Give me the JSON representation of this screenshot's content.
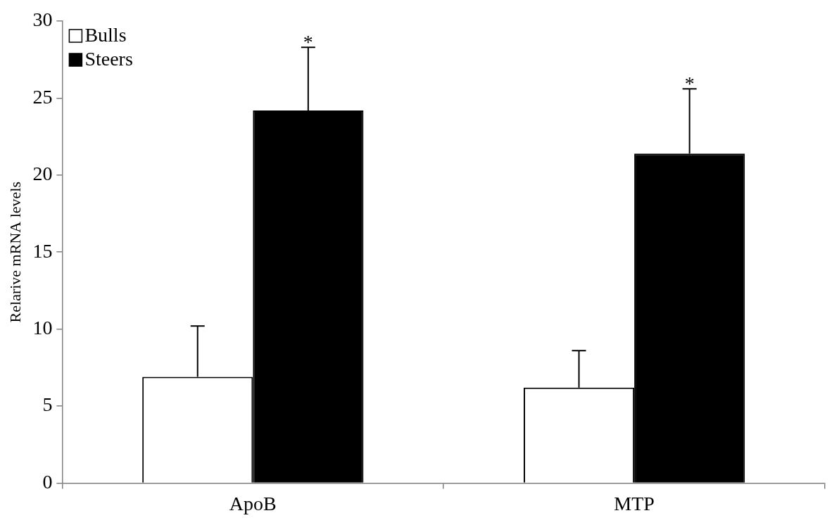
{
  "chart_data": {
    "type": "bar",
    "ylabel": "Relarive mRNA levels",
    "categories": [
      "ApoB",
      "MTP"
    ],
    "series": [
      {
        "name": "Bulls",
        "color": "#ffffff",
        "values": [
          6.9,
          6.2
        ],
        "errors": [
          3.3,
          2.4
        ]
      },
      {
        "name": "Steers",
        "color": "#000000",
        "values": [
          24.2,
          21.4
        ],
        "errors": [
          4.1,
          4.2
        ]
      }
    ],
    "annotations": [
      {
        "series": "Steers",
        "category": "ApoB",
        "text": "*"
      },
      {
        "series": "Steers",
        "category": "MTP",
        "text": "*"
      }
    ],
    "ylim": [
      0,
      30
    ],
    "yticks": [
      0,
      5,
      10,
      15,
      20,
      25,
      30
    ],
    "grid": false,
    "legend": "upper left"
  }
}
